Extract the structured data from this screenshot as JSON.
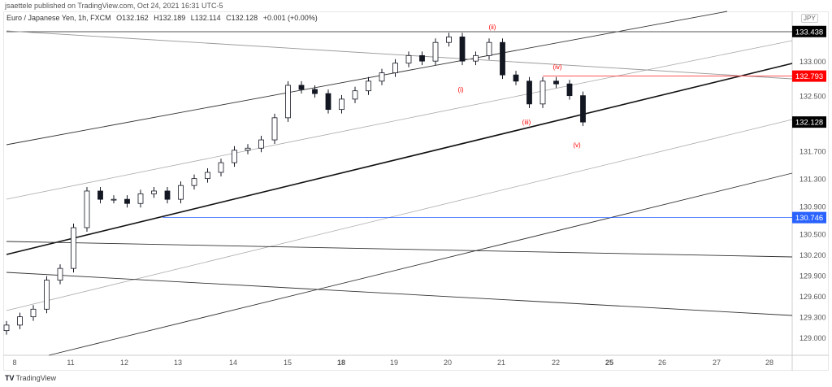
{
  "header": {
    "published": "jsaettele published on TradingView.com, Oct 24, 2021 16:31 UTC-5",
    "symbol": "Euro / Japanese Yen, 1h, FXCM",
    "open": "O132.162",
    "high": "H132.189",
    "low": "L132.114",
    "close": "C132.128",
    "change": "+0.001 (+0.00%)"
  },
  "footer": {
    "logo": "TV",
    "brand": "TradingView"
  },
  "colors": {
    "up": "#131722",
    "down": "#131722",
    "red": "#ff0000",
    "blue": "#2962ff",
    "label_dark": "#000000"
  },
  "chart_data": {
    "type": "candlestick",
    "currency": "JPY",
    "ylim": [
      128.85,
      133.55
    ],
    "y_ticks": [
      "133.000",
      "132.500",
      "131.700",
      "131.300",
      "130.900",
      "130.500",
      "130.200",
      "129.900",
      "129.600",
      "129.300",
      "129.000"
    ],
    "y_tick_values": [
      133.0,
      132.5,
      131.7,
      131.3,
      130.9,
      130.5,
      130.2,
      129.9,
      129.6,
      129.3,
      129.0
    ],
    "x_ticks": [
      "8",
      "11",
      "12",
      "13",
      "14",
      "15",
      "18",
      "19",
      "20",
      "21",
      "22",
      "25",
      "26",
      "27",
      "28"
    ],
    "closes": [
      129.19,
      129.31,
      129.42,
      129.84,
      130.01,
      130.6,
      131.13,
      131.01,
      131.01,
      130.95,
      131.09,
      131.13,
      131.01,
      131.21,
      131.31,
      131.4,
      131.54,
      131.72,
      131.75,
      131.87,
      132.19,
      132.66,
      132.6,
      132.54,
      132.31,
      132.46,
      132.58,
      132.72,
      132.84,
      132.98,
      133.09,
      133.01,
      133.28,
      133.36,
      133.01,
      133.09,
      133.28,
      132.81,
      132.72,
      132.39,
      132.72,
      132.68,
      132.51,
      132.128
    ],
    "price_labels": [
      {
        "text": "133.438",
        "value": 133.438,
        "color": "#000000"
      },
      {
        "text": "132.793",
        "value": 132.793,
        "color": "#ff0000"
      },
      {
        "text": "132.128",
        "value": 132.128,
        "color": "#000000"
      },
      {
        "text": "130.746",
        "value": 130.746,
        "color": "#2962ff"
      }
    ],
    "wave_labels": [
      "(ii)",
      "(iv)",
      "(i)",
      "(iii)",
      "(v)"
    ]
  }
}
